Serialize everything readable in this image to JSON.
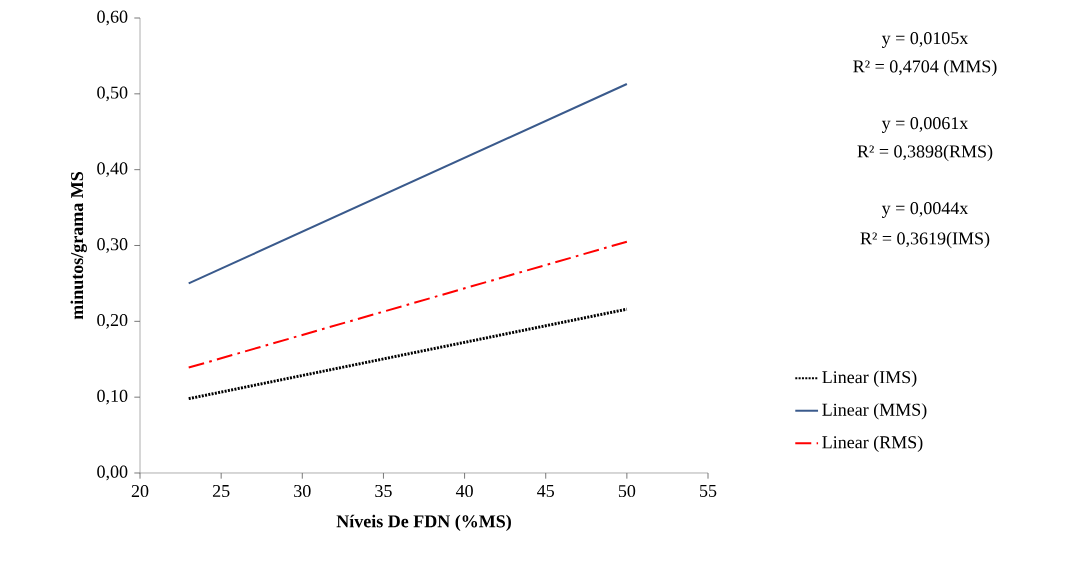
{
  "chart_data": {
    "type": "line",
    "xlabel": "Níveis De FDN (%MS)",
    "ylabel": "minutos/grama MS",
    "x": [
      23,
      50
    ],
    "series": [
      {
        "name": "Linear (IMS)",
        "color": "#000000",
        "line_style": "dotted",
        "values": [
          0.098,
          0.216
        ]
      },
      {
        "name": "Linear (MMS)",
        "color": "#3a5a8c",
        "line_style": "solid",
        "values": [
          0.25,
          0.513
        ]
      },
      {
        "name": "Linear (RMS)",
        "color": "#ff0000",
        "line_style": "dashdot",
        "values": [
          0.139,
          0.305
        ]
      }
    ],
    "xlim": [
      20,
      55
    ],
    "xticks": [
      20,
      25,
      30,
      35,
      40,
      45,
      50,
      55
    ],
    "ylim": [
      0,
      0.6
    ],
    "yticks": [
      {
        "value": 0,
        "label": "0,00"
      },
      {
        "value": 0.1,
        "label": "0,10"
      },
      {
        "value": 0.2,
        "label": "0,20"
      },
      {
        "value": 0.3,
        "label": "0,30"
      },
      {
        "value": 0.4,
        "label": "0,40"
      },
      {
        "value": 0.5,
        "label": "0,50"
      },
      {
        "value": 0.6,
        "label": "0,60"
      }
    ],
    "legend": "right",
    "grid": false,
    "annotations": [
      "y = 0,0105x",
      "R² = 0,4704 (MMS)",
      "y = 0,0061x",
      "R² = 0,3898(RMS)",
      "y = 0,0044x",
      "R² = 0,3619(IMS)"
    ]
  }
}
